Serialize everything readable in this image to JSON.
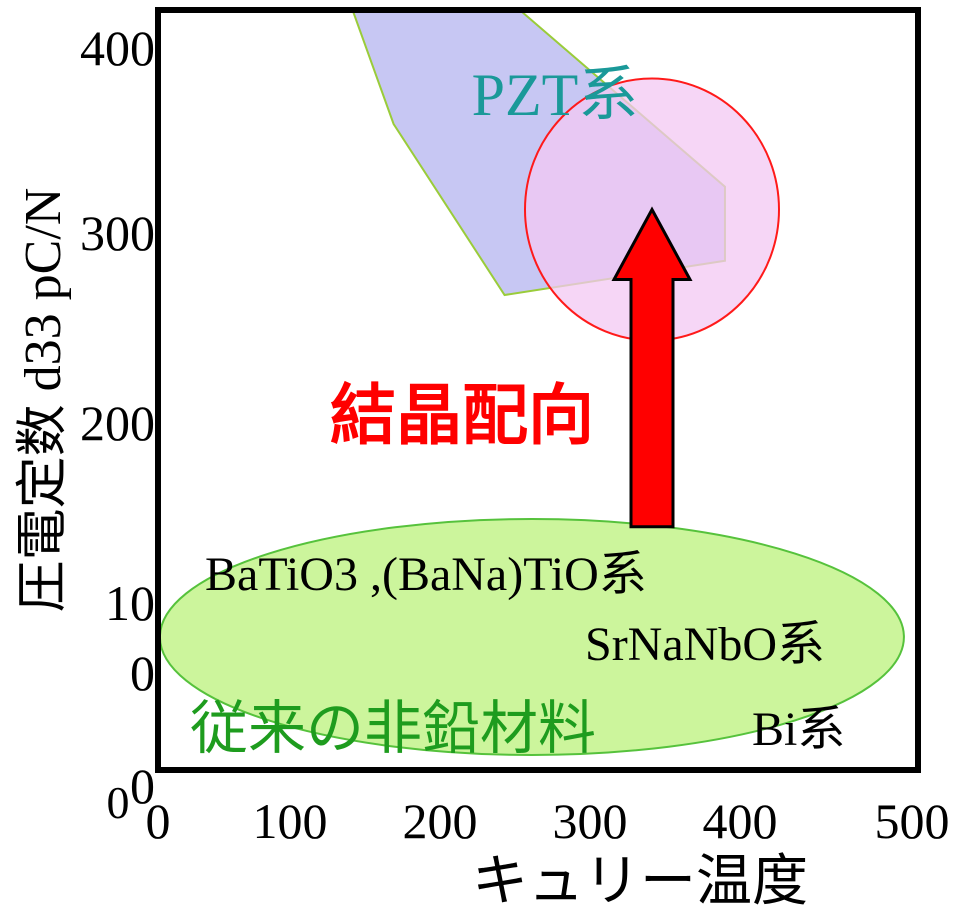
{
  "chart_data": {
    "type": "scatter",
    "title": "",
    "xlabel": "キュリー温度",
    "ylabel": "圧電定数 d33 pC/N",
    "xlim": [
      0,
      500
    ],
    "ylim": [
      0,
      400
    ],
    "x_ticks": [
      "0",
      "100",
      "200",
      "300",
      "400",
      "500"
    ],
    "y_ticks": [
      "0",
      "10\n0",
      "200",
      "300",
      "400"
    ],
    "y_tick_values": [
      0,
      100,
      200,
      300,
      400
    ],
    "x_origin_label": "0",
    "grid": false,
    "legend": "none",
    "regions": [
      {
        "name": "PZT系",
        "kind": "band",
        "color": "#c7c7f3",
        "edge_color": "#9acc3a",
        "vertices": [
          [
            128,
            400
          ],
          [
            238,
            400
          ],
          [
            373,
            307
          ],
          [
            373,
            268
          ],
          [
            228,
            250
          ],
          [
            155,
            340
          ]
        ]
      },
      {
        "name": "従来の非鉛材料",
        "kind": "ellipse",
        "color": "#ccf59c",
        "edge_color": "#56c23c",
        "center": [
          246,
          70
        ],
        "radii": [
          247,
          62
        ]
      },
      {
        "name": "target",
        "kind": "circle",
        "color": "#f3c8f3",
        "edge_color": "#ff1a1a",
        "center": [
          325,
          295
        ],
        "radii": [
          83,
          68
        ]
      }
    ],
    "arrow": {
      "label": "結晶配向",
      "from": [
        325,
        128
      ],
      "to": [
        325,
        295
      ],
      "color": "#ff0000"
    },
    "annotations": [
      {
        "text": "PZT系",
        "x": 275,
        "y": 355,
        "color": "#1a9999"
      },
      {
        "text": "BaTiO3 ,(BaNa)TiO系",
        "x": 212,
        "y": 103,
        "color": "#000000"
      },
      {
        "text": "SrNaNbO系",
        "x": 390,
        "y": 66,
        "color": "#000000"
      },
      {
        "text": "従来の非鉛材料",
        "x": 148,
        "y": 21,
        "color": "#1e9c1e"
      },
      {
        "text": "Bi系",
        "x": 398,
        "y": 21,
        "color": "#000000"
      }
    ]
  }
}
